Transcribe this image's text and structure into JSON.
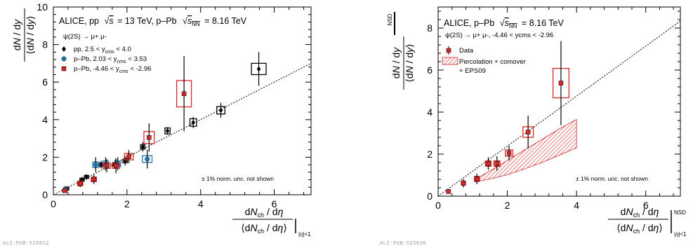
{
  "chart_data": [
    {
      "type": "scatter",
      "title": "ALICE, pp √s = 13 TeV, p–Pb √sNN = 8.16 TeV",
      "title_parts": {
        "collab": "ALICE, pp",
        "pp_energy": "= 13 TeV, p–Pb",
        "ppb_energy": "= 8.16 TeV"
      },
      "xlim": [
        0,
        7
      ],
      "ylim": [
        0,
        10
      ],
      "xticks": [
        "0",
        "2",
        "4",
        "6"
      ],
      "yticks": [
        "0",
        "2",
        "4",
        "6",
        "8",
        "10"
      ],
      "xlabel": "dNch / dη / ⟨dNch / dη⟩ |η|<1",
      "ylabel": "dN / dy / ⟨dN / dy⟩",
      "legend_header": "ψ(2S) → μ+ μ-",
      "note": "± 1% norm. unc. not shown",
      "footer": "ALI-PUB-525612",
      "guide_line": {
        "style": "dotted",
        "slope": 1,
        "intercept": 0
      },
      "series": [
        {
          "name": "pp, 2.5 < ycms < 4.0",
          "legend_label": "pp, 2.5 < y",
          "legend_sub": "cms",
          "legend_tail": "< 4.0",
          "marker": "diamond",
          "color": "#000000",
          "box_color": "#000000",
          "points": [
            {
              "x": 0.36,
              "y": 0.33,
              "ey": 0.05,
              "bw": 0.06,
              "bh": 0.08
            },
            {
              "x": 0.78,
              "y": 0.8,
              "ey": 0.15,
              "bw": 0.06,
              "bh": 0.08
            },
            {
              "x": 0.9,
              "y": 0.95,
              "ey": 0.15,
              "bw": 0.06,
              "bh": 0.08
            },
            {
              "x": 1.3,
              "y": 1.6,
              "ey": 0.2,
              "bw": 0.06,
              "bh": 0.1
            },
            {
              "x": 1.68,
              "y": 1.62,
              "ey": 0.25,
              "bw": 0.06,
              "bh": 0.1
            },
            {
              "x": 1.95,
              "y": 1.8,
              "ey": 0.25,
              "bw": 0.06,
              "bh": 0.1
            },
            {
              "x": 2.43,
              "y": 2.55,
              "ey": 0.25,
              "bw": 0.06,
              "bh": 0.12
            },
            {
              "x": 3.1,
              "y": 3.4,
              "ey": 0.2,
              "bw": 0.07,
              "bh": 0.16
            },
            {
              "x": 3.8,
              "y": 3.85,
              "ey": 0.3,
              "bw": 0.09,
              "bh": 0.2
            },
            {
              "x": 4.55,
              "y": 4.5,
              "ey": 0.4,
              "bw": 0.11,
              "bh": 0.2
            },
            {
              "x": 5.58,
              "y": 6.7,
              "ey": 0.9,
              "bw": 0.2,
              "bh": 0.3
            }
          ]
        },
        {
          "name": "p–Pb, 2.03 < ycms < 3.53",
          "legend_label": "p–Pb, 2.03 < y",
          "legend_sub": "cms",
          "legend_tail": "< 3.53",
          "marker": "circle",
          "color": "#1f77b4",
          "box_color": "#1f77b4",
          "points": [
            {
              "x": 0.33,
              "y": 0.3,
              "ey": 0.1,
              "bw": 0.05,
              "bh": 0.07
            },
            {
              "x": 1.15,
              "y": 1.6,
              "ey": 0.4,
              "bw": 0.08,
              "bh": 0.15
            },
            {
              "x": 1.42,
              "y": 1.65,
              "ey": 0.35,
              "bw": 0.08,
              "bh": 0.15
            },
            {
              "x": 1.75,
              "y": 1.65,
              "ey": 0.35,
              "bw": 0.08,
              "bh": 0.15
            },
            {
              "x": 2.55,
              "y": 1.9,
              "ey": 0.5,
              "bw": 0.13,
              "bh": 0.18
            }
          ]
        },
        {
          "name": "p–Pb, -4.46 < ycms < -2.96",
          "legend_label": "p–Pb, -4.46 < y",
          "legend_sub": "cms",
          "legend_tail": "< -2.96",
          "marker": "square",
          "color": "#d62728",
          "box_color": "#d62728",
          "points": [
            {
              "x": 0.31,
              "y": 0.22,
              "ey": 0.1,
              "bw": 0.06,
              "bh": 0.07
            },
            {
              "x": 0.73,
              "y": 0.6,
              "ey": 0.2,
              "bw": 0.07,
              "bh": 0.12
            },
            {
              "x": 1.1,
              "y": 0.82,
              "ey": 0.25,
              "bw": 0.07,
              "bh": 0.12
            },
            {
              "x": 1.45,
              "y": 1.55,
              "ey": 0.35,
              "bw": 0.1,
              "bh": 0.14
            },
            {
              "x": 1.7,
              "y": 1.55,
              "ey": 0.4,
              "bw": 0.1,
              "bh": 0.14
            },
            {
              "x": 2.05,
              "y": 2.03,
              "ey": 0.35,
              "bw": 0.12,
              "bh": 0.17
            },
            {
              "x": 2.6,
              "y": 3.05,
              "ey": 0.75,
              "bw": 0.14,
              "bh": 0.32
            },
            {
              "x": 3.55,
              "y": 5.38,
              "ey": 2.0,
              "bw": 0.2,
              "bh": 0.7
            }
          ]
        }
      ]
    },
    {
      "type": "scatter",
      "title": "ALICE, p–Pb √sNN = 8.16 TeV",
      "title_parts": {
        "collab": "ALICE, p–Pb",
        "ppb_energy": "= 8.16 TeV"
      },
      "xlim": [
        0,
        7
      ],
      "ylim": [
        0,
        9
      ],
      "xticks": [
        "0",
        "2",
        "4",
        "6"
      ],
      "yticks": [
        "0",
        "2",
        "4",
        "6",
        "8"
      ],
      "xlabel": "dNch / dη / ⟨dNch / dη⟩ NSD |η|<1",
      "ylabel": "dN / dy / ⟨dN / dy⟩ NSD",
      "legend_header": "ψ(2S) → μ+ μ-, -4.46 < ycms < -2.96",
      "note": "± 1% norm. unc. not shown",
      "footer": "ALI-PUB-525636",
      "guide_line": {
        "style": "dotted",
        "slope": 1.19,
        "intercept": 0
      },
      "legend": [
        {
          "label": "Data",
          "type": "marker"
        },
        {
          "label": "Percolation + comover",
          "label2": "+ EPS09",
          "type": "band"
        }
      ],
      "band": {
        "x": [
          1.2,
          1.5,
          2.0,
          2.5,
          3.0,
          3.5,
          4.0
        ],
        "low": [
          0.72,
          0.82,
          1.02,
          1.3,
          1.6,
          1.95,
          2.3
        ],
        "high": [
          0.92,
          1.2,
          1.7,
          2.2,
          2.7,
          3.2,
          3.65
        ]
      },
      "series": [
        {
          "name": "Data",
          "marker": "square",
          "color": "#d62728",
          "box_color": "#d62728",
          "points": [
            {
              "x": 0.3,
              "y": 0.22,
              "ey": 0.08,
              "bw": 0.05,
              "bh": 0.07
            },
            {
              "x": 0.73,
              "y": 0.62,
              "ey": 0.2,
              "bw": 0.06,
              "bh": 0.1
            },
            {
              "x": 1.12,
              "y": 0.82,
              "ey": 0.25,
              "bw": 0.07,
              "bh": 0.12
            },
            {
              "x": 1.45,
              "y": 1.55,
              "ey": 0.3,
              "bw": 0.08,
              "bh": 0.13
            },
            {
              "x": 1.7,
              "y": 1.55,
              "ey": 0.35,
              "bw": 0.09,
              "bh": 0.13
            },
            {
              "x": 2.05,
              "y": 2.05,
              "ey": 0.35,
              "bw": 0.11,
              "bh": 0.15
            },
            {
              "x": 2.6,
              "y": 3.05,
              "ey": 0.78,
              "bw": 0.15,
              "bh": 0.25
            },
            {
              "x": 3.55,
              "y": 5.38,
              "ey": 2.0,
              "bw": 0.23,
              "bh": 0.7
            }
          ]
        }
      ]
    }
  ]
}
